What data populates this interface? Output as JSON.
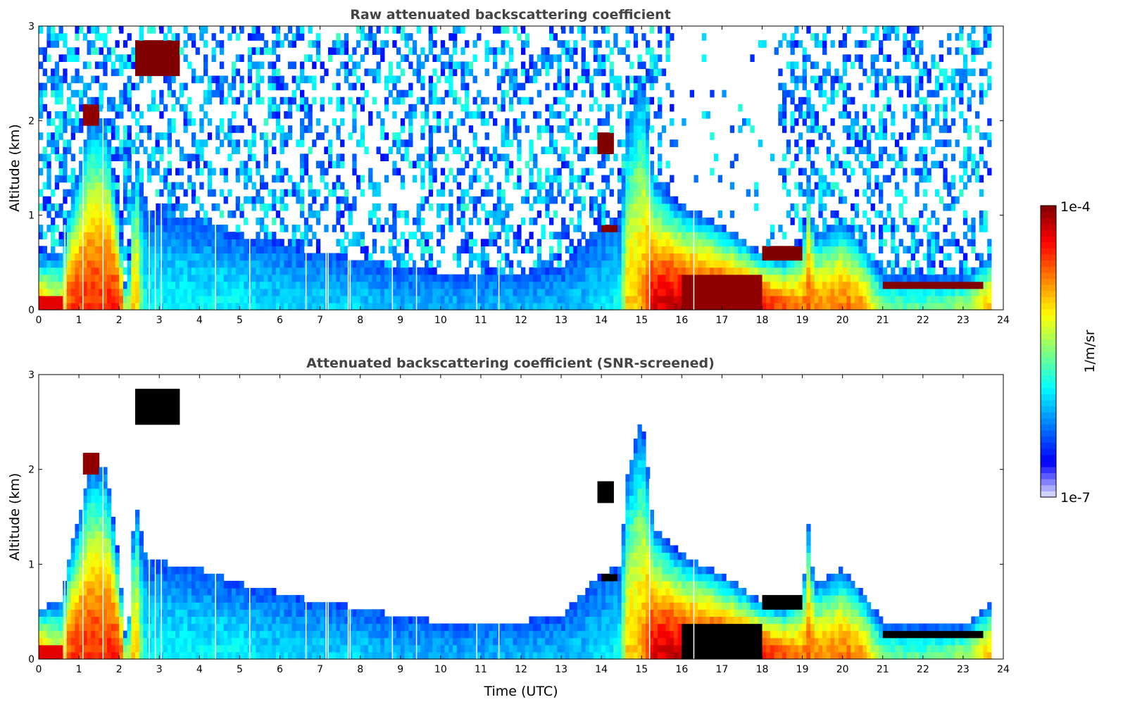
{
  "chart_data": [
    {
      "type": "heatmap",
      "id": "raw",
      "title": "Raw attenuated backscattering coefficient",
      "xlabel": "",
      "ylabel": "Altitude (km)",
      "xlim": [
        0,
        24
      ],
      "ylim": [
        0,
        3
      ],
      "xticks": [
        "0",
        "1",
        "2",
        "3",
        "4",
        "5",
        "6",
        "7",
        "8",
        "9",
        "10",
        "11",
        "12",
        "13",
        "14",
        "15",
        "16",
        "17",
        "18",
        "19",
        "20",
        "21",
        "22",
        "23",
        "24"
      ],
      "yticks": [
        "0",
        "1",
        "2",
        "3"
      ],
      "noise_above_layer": true,
      "saturated_color": null
    },
    {
      "type": "heatmap",
      "id": "screened",
      "title": "Attenuated backscattering coefficient (SNR-screened)",
      "xlabel": "Time (UTC)",
      "ylabel": "Altitude (km)",
      "xlim": [
        0,
        24
      ],
      "ylim": [
        0,
        3
      ],
      "xticks": [
        "0",
        "1",
        "2",
        "3",
        "4",
        "5",
        "6",
        "7",
        "8",
        "9",
        "10",
        "11",
        "12",
        "13",
        "14",
        "15",
        "16",
        "17",
        "18",
        "19",
        "20",
        "21",
        "22",
        "23",
        "24"
      ],
      "yticks": [
        "0",
        "1",
        "2",
        "3"
      ],
      "noise_above_layer": false,
      "saturated_color": "#000000"
    }
  ],
  "profile": {
    "time_utc": [
      0,
      0.6,
      0.7,
      1.0,
      1.3,
      1.7,
      2.0,
      2.2,
      2.4,
      2.6,
      2.8,
      4,
      5,
      6,
      7,
      8,
      9,
      10,
      11,
      12,
      13,
      14,
      14.5,
      14.6,
      15.0,
      15.3,
      16,
      17,
      18,
      18.5,
      19.0,
      19.15,
      19.3,
      20,
      20.5,
      21,
      22,
      23,
      23.7
    ],
    "layer_top_km": [
      0.55,
      0.6,
      1.0,
      1.5,
      2.1,
      2.0,
      1.0,
      0.05,
      1.75,
      1.2,
      1.05,
      0.95,
      0.8,
      0.7,
      0.6,
      0.55,
      0.45,
      0.4,
      0.4,
      0.4,
      0.45,
      0.9,
      1.0,
      1.85,
      2.6,
      1.4,
      1.1,
      0.9,
      0.6,
      0.55,
      0.7,
      1.4,
      0.8,
      0.95,
      0.7,
      0.4,
      0.35,
      0.35,
      0.6
    ],
    "log10_beta_surface": [
      -4.8,
      -5.2,
      -4.6,
      -4.5,
      -4.5,
      -4.5,
      -4.4,
      -5.5,
      -4.7,
      -5.8,
      -5.9,
      -5.9,
      -5.9,
      -6.0,
      -6.0,
      -6.0,
      -6.1,
      -6.1,
      -6.1,
      -6.1,
      -6.1,
      -6.0,
      -5.8,
      -5.0,
      -4.9,
      -4.3,
      -4.2,
      -4.2,
      -4.3,
      -4.6,
      -4.8,
      -4.6,
      -4.8,
      -4.7,
      -4.8,
      -5.6,
      -5.6,
      -5.4,
      -4.9
    ]
  },
  "features": [
    {
      "name": "cloud",
      "t": [
        1.15,
        1.5
      ],
      "z": [
        1.95,
        2.15
      ],
      "log10_beta": -4.05
    },
    {
      "name": "cloud",
      "t": [
        2.4,
        3.45
      ],
      "z": [
        2.45,
        2.85
      ],
      "log10_beta": -4.0
    },
    {
      "name": "cloud",
      "t": [
        13.95,
        14.3
      ],
      "z": [
        1.68,
        1.85
      ],
      "log10_beta": -4.0
    },
    {
      "name": "cloud",
      "t": [
        14.0,
        14.45
      ],
      "z": [
        0.8,
        0.92
      ],
      "log10_beta": -4.0
    },
    {
      "name": "cloud",
      "t": [
        16.0,
        18.0
      ],
      "z": [
        0.0,
        0.35
      ],
      "log10_beta": -4.05
    },
    {
      "name": "cloud",
      "t": [
        18.0,
        19.0
      ],
      "z": [
        0.5,
        0.65
      ],
      "log10_beta": -4.0
    },
    {
      "name": "cloud",
      "t": [
        21.0,
        23.5
      ],
      "z": [
        0.2,
        0.32
      ],
      "log10_beta": -4.0
    }
  ],
  "data_gaps_utc": [
    0.65,
    1.1,
    1.6,
    2.75,
    2.9,
    3.05,
    4.4,
    5.25,
    6.65,
    7.15,
    7.2,
    7.7,
    7.75,
    8.8,
    9.4,
    10.9,
    11.45,
    15.2,
    16.3
  ],
  "colorbar": {
    "label": "1/m/sr",
    "max_label": "1e-4",
    "min_label": "1e-7",
    "range_log10": [
      -7,
      -4
    ]
  },
  "colors": {
    "title": "#444444",
    "axis": "#000000"
  }
}
